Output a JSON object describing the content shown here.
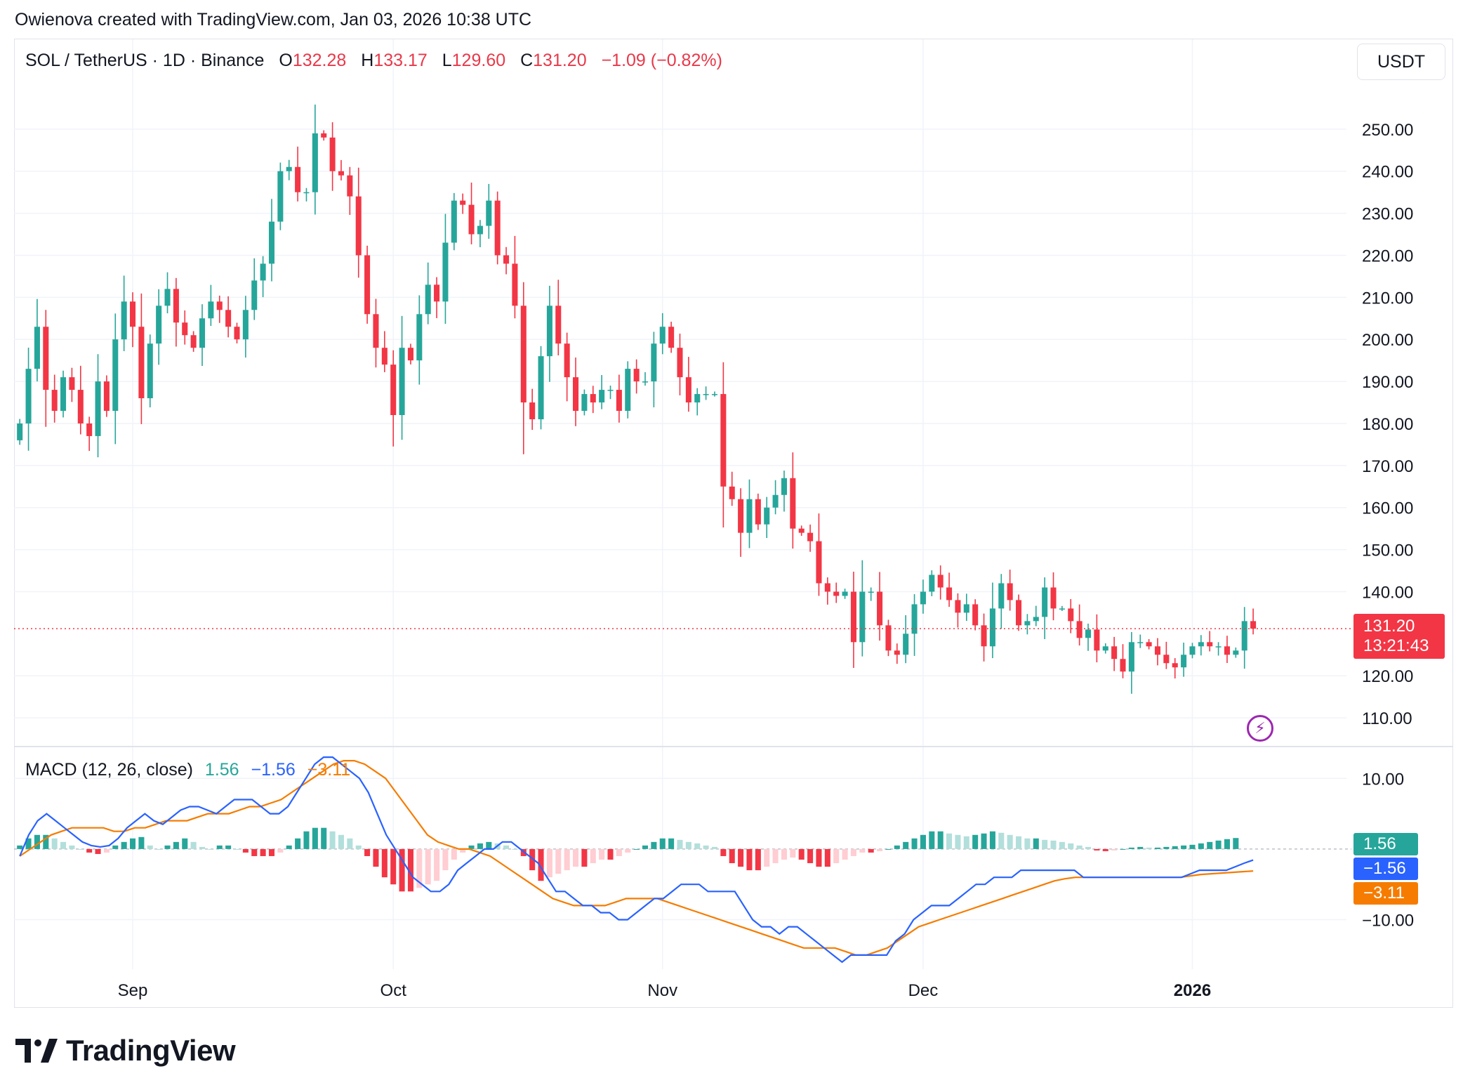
{
  "credit": "Owienova created with TradingView.com, Jan 03, 2026 10:38 UTC",
  "header": {
    "symbol": "SOL / TetherUS · 1D · Binance",
    "open_label": "O",
    "open": "132.28",
    "high_label": "H",
    "high": "133.17",
    "low_label": "L",
    "low": "129.60",
    "close_label": "C",
    "close": "131.20",
    "change": "−1.09 (−0.82%)"
  },
  "currency_button": "USDT",
  "price_tag": {
    "price": "131.20",
    "countdown": "13:21:43"
  },
  "macd_legend": {
    "title": "MACD (12, 26, close)",
    "histogram": "1.56",
    "macd": "−1.56",
    "signal": "−3.11"
  },
  "macd_tags": {
    "histogram": "1.56",
    "macd": "−1.56",
    "signal": "−3.11"
  },
  "logo_text": "TradingView",
  "colors": {
    "up": "#26a69a",
    "down": "#f23645",
    "macd": "#2962ff",
    "signal": "#f57c00",
    "hist_up_light": "#b2dfdb",
    "hist_down_light": "#ffcdd2"
  },
  "icons": {
    "bolt": "lightning-bolt-icon",
    "logo": "tradingview-logo-icon"
  },
  "chart_data": {
    "type": "candlestick",
    "price_axis": {
      "ticks": [
        "250.00",
        "240.00",
        "230.00",
        "220.00",
        "210.00",
        "200.00",
        "190.00",
        "180.00",
        "170.00",
        "160.00",
        "150.00",
        "140.00",
        "120.00",
        "110.00"
      ],
      "ylim": [
        104,
        262
      ]
    },
    "macd_axis": {
      "ticks": [
        "10.00",
        "−10.00"
      ],
      "ylim": [
        -17,
        14
      ]
    },
    "time_axis": [
      {
        "label": "Sep",
        "day": 13
      },
      {
        "label": "Oct",
        "day": 43
      },
      {
        "label": "Nov",
        "day": 74
      },
      {
        "label": "Dec",
        "day": 104
      },
      {
        "label": "2026",
        "day": 135,
        "bold": true
      }
    ],
    "last_price": 131.2,
    "closes": [
      180,
      193,
      203,
      188,
      183,
      191,
      188,
      180,
      177,
      190,
      183,
      200,
      209,
      203,
      186,
      199,
      208,
      212,
      204,
      201,
      198,
      205,
      209,
      207,
      203,
      200,
      207,
      214,
      218,
      228,
      240,
      241,
      235,
      235,
      249,
      248,
      240,
      239,
      234,
      220,
      206,
      198,
      194,
      182,
      198,
      195,
      206,
      213,
      209,
      223,
      233,
      232,
      225,
      227,
      233,
      220,
      218,
      208,
      185,
      181,
      196,
      208,
      199,
      191,
      183,
      187,
      185,
      188,
      188,
      183,
      193,
      190,
      190,
      199,
      203,
      198,
      191,
      185,
      187,
      187,
      187,
      165,
      162,
      154,
      162,
      156,
      160,
      163,
      167,
      155,
      154,
      152,
      142,
      140,
      139,
      140,
      128,
      140,
      140,
      132,
      126,
      125,
      130,
      137,
      140,
      144,
      141,
      138,
      135,
      137,
      132,
      127,
      136,
      142,
      138,
      132,
      133,
      134,
      141,
      136,
      136,
      133,
      129,
      131,
      126,
      127,
      124,
      121,
      128,
      128,
      127,
      125,
      123,
      122,
      125,
      127,
      128,
      127,
      127,
      125,
      126,
      133,
      131.2
    ],
    "macd": [
      -1,
      2,
      4,
      5,
      4,
      3,
      2,
      1,
      0.5,
      0.3,
      0.5,
      1.5,
      3,
      4,
      5,
      4,
      3.5,
      4.5,
      5.5,
      6,
      6,
      5.5,
      5,
      6,
      7,
      7,
      7,
      6,
      5,
      5,
      6,
      8,
      10,
      12,
      13,
      13,
      12,
      11,
      10,
      8,
      5,
      2,
      0,
      -2,
      -4,
      -5,
      -6,
      -6,
      -5,
      -3,
      -2,
      -1,
      0,
      0,
      1,
      1,
      0,
      -1,
      -2,
      -4,
      -6,
      -6,
      -7,
      -8,
      -8,
      -9,
      -9,
      -10,
      -10,
      -9,
      -8,
      -7,
      -7,
      -6,
      -5,
      -5,
      -5,
      -6,
      -6,
      -6,
      -6,
      -8,
      -10,
      -11,
      -11,
      -12,
      -11,
      -11,
      -12,
      -13,
      -14,
      -15,
      -16,
      -15,
      -15,
      -15,
      -15,
      -15,
      -13,
      -12,
      -10,
      -9,
      -8,
      -8,
      -8,
      -7,
      -6,
      -5,
      -5,
      -4,
      -4,
      -4,
      -3,
      -3,
      -3,
      -3,
      -3,
      -3,
      -3,
      -4,
      -4,
      -4,
      -4,
      -4,
      -4,
      -4,
      -4,
      -4,
      -4,
      -4,
      -4,
      -3.5,
      -3,
      -3,
      -3,
      -3,
      -2.5,
      -2,
      -1.56
    ],
    "signal": [
      -1,
      0,
      1,
      2,
      2.5,
      3,
      3,
      3,
      3,
      2.5,
      2.5,
      3,
      3,
      3.5,
      4,
      4,
      4,
      4.5,
      5,
      5,
      5,
      5.5,
      6,
      6,
      6.5,
      7,
      8,
      9,
      10,
      11,
      12,
      12.5,
      12.5,
      12,
      11,
      10,
      8,
      6,
      4,
      2,
      1,
      0.5,
      0,
      0,
      -0.5,
      -1,
      -2,
      -3,
      -4,
      -5,
      -6,
      -7,
      -7.5,
      -8,
      -8,
      -8,
      -8,
      -7.5,
      -7,
      -7,
      -7,
      -7,
      -7.5,
      -8,
      -8.5,
      -9,
      -9.5,
      -10,
      -10.5,
      -11,
      -11.5,
      -12,
      -12.5,
      -13,
      -13.5,
      -14,
      -14,
      -14,
      -14,
      -14.5,
      -15,
      -15,
      -14.5,
      -14,
      -13,
      -12,
      -11,
      -10.5,
      -10,
      -9.5,
      -9,
      -8.5,
      -8,
      -7.5,
      -7,
      -6.5,
      -6,
      -5.5,
      -5,
      -4.5,
      -4.2,
      -4,
      -4,
      -4,
      -4,
      -4,
      -4,
      -4,
      -4,
      -4,
      -4,
      -4,
      -3.8,
      -3.6,
      -3.5,
      -3.4,
      -3.3,
      -3.2,
      -3.11
    ],
    "histogram": [
      0.5,
      1.5,
      2,
      2,
      1.5,
      1,
      0.5,
      0,
      -0.5,
      -0.7,
      -0.5,
      0.5,
      1,
      1.5,
      1.7,
      0.5,
      0,
      0.5,
      1,
      1.5,
      1,
      0.3,
      0,
      0.5,
      0.5,
      0,
      -0.5,
      -1,
      -1,
      -1,
      -0.5,
      0.5,
      1.5,
      2.5,
      3,
      3,
      2.5,
      2,
      1.5,
      0.5,
      -1,
      -2.5,
      -4,
      -5,
      -6,
      -6,
      -5.5,
      -5,
      -4.5,
      -3,
      -1.5,
      -0.5,
      0.5,
      0.8,
      1,
      0.8,
      0.5,
      0,
      -1,
      -3,
      -4.5,
      -4,
      -3.5,
      -3,
      -2.5,
      -2.5,
      -2,
      -1.5,
      -1.5,
      -1,
      -0.5,
      0,
      0.5,
      1,
      1.5,
      1.5,
      1.3,
      1,
      0.8,
      0.5,
      0.3,
      -1,
      -2,
      -2.5,
      -3,
      -3,
      -2.5,
      -2,
      -1.5,
      -1.2,
      -1.5,
      -2,
      -2.5,
      -2.5,
      -2,
      -1.5,
      -1,
      -0.5,
      -0.5,
      -0.3,
      0,
      0.5,
      1,
      1.5,
      2,
      2.5,
      2.5,
      2.2,
      2,
      1.8,
      2,
      2.2,
      2.5,
      2.3,
      2,
      1.8,
      1.5,
      1.5,
      1.3,
      1.2,
      1,
      0.8,
      0.5,
      0.3,
      -0.2,
      -0.3,
      -0.2,
      0,
      0.2,
      0.3,
      0.2,
      0.2,
      0.3,
      0.4,
      0.5,
      0.6,
      0.8,
      1,
      1.2,
      1.4,
      1.56
    ]
  }
}
